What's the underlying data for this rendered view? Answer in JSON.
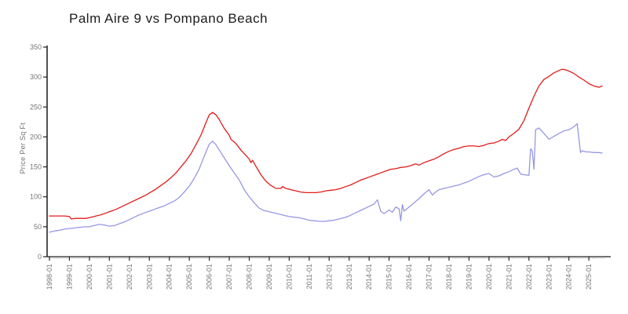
{
  "header": {
    "title": "Palm Aire 9 vs Pompano Beach"
  },
  "chart_data": {
    "type": "line",
    "title": "Palm Aire 9 vs Pompano Beach",
    "xlabel": "",
    "ylabel": "Price Per Sq Ft",
    "ylim": [
      0,
      350
    ],
    "y_tick_step": 50,
    "y_ticks": [
      0,
      50,
      100,
      150,
      200,
      250,
      300,
      350
    ],
    "x_tick_labels": [
      "1998-01",
      "1999-01",
      "2000-01",
      "2001-01",
      "2002-01",
      "2003-01",
      "2004-01",
      "2005-01",
      "2006-01",
      "2007-01",
      "2008-01",
      "2009-01",
      "2010-01",
      "2011-01",
      "2012-01",
      "2013-01",
      "2014-01",
      "2015-01",
      "2016-01",
      "2017-01",
      "2018-01",
      "2019-01",
      "2020-01",
      "2021-01",
      "2022-01",
      "2023-01",
      "2024-01",
      "2025-01"
    ],
    "x_range": [
      "1998-01",
      "2025-10"
    ],
    "grid": false,
    "legend_position": "none",
    "axis_color": "#1a1a1a",
    "tick_label_color": "#767676",
    "series": [
      {
        "name": "red-series",
        "color": "#e01c1c",
        "points": [
          [
            "1998-01",
            68
          ],
          [
            "1998-04",
            68
          ],
          [
            "1998-07",
            68
          ],
          [
            "1998-10",
            68
          ],
          [
            "1999-01",
            67
          ],
          [
            "1999-02",
            63
          ],
          [
            "1999-05",
            64
          ],
          [
            "1999-08",
            64
          ],
          [
            "1999-11",
            64
          ],
          [
            "2000-02",
            66
          ],
          [
            "2000-05",
            68
          ],
          [
            "2000-08",
            70
          ],
          [
            "2000-11",
            73
          ],
          [
            "2001-02",
            76
          ],
          [
            "2001-05",
            79
          ],
          [
            "2001-08",
            83
          ],
          [
            "2001-11",
            87
          ],
          [
            "2002-02",
            91
          ],
          [
            "2002-05",
            95
          ],
          [
            "2002-08",
            99
          ],
          [
            "2002-11",
            103
          ],
          [
            "2003-02",
            108
          ],
          [
            "2003-05",
            113
          ],
          [
            "2003-08",
            119
          ],
          [
            "2003-11",
            125
          ],
          [
            "2004-02",
            132
          ],
          [
            "2004-05",
            140
          ],
          [
            "2004-08",
            150
          ],
          [
            "2004-11",
            160
          ],
          [
            "2005-02",
            172
          ],
          [
            "2005-05",
            187
          ],
          [
            "2005-08",
            203
          ],
          [
            "2005-11",
            224
          ],
          [
            "2006-01",
            237
          ],
          [
            "2006-03",
            241
          ],
          [
            "2006-05",
            237
          ],
          [
            "2006-07",
            229
          ],
          [
            "2006-10",
            214
          ],
          [
            "2007-01",
            203
          ],
          [
            "2007-02",
            196
          ],
          [
            "2007-05",
            189
          ],
          [
            "2007-08",
            178
          ],
          [
            "2007-11",
            169
          ],
          [
            "2008-01",
            163
          ],
          [
            "2008-02",
            157
          ],
          [
            "2008-03",
            161
          ],
          [
            "2008-05",
            151
          ],
          [
            "2008-08",
            137
          ],
          [
            "2008-11",
            126
          ],
          [
            "2009-02",
            119
          ],
          [
            "2009-05",
            114
          ],
          [
            "2009-08",
            114
          ],
          [
            "2009-09",
            117
          ],
          [
            "2009-11",
            114
          ],
          [
            "2010-02",
            112
          ],
          [
            "2010-05",
            110
          ],
          [
            "2010-08",
            108
          ],
          [
            "2010-11",
            107
          ],
          [
            "2011-02",
            107
          ],
          [
            "2011-05",
            107
          ],
          [
            "2011-08",
            108
          ],
          [
            "2011-11",
            110
          ],
          [
            "2012-02",
            111
          ],
          [
            "2012-05",
            112
          ],
          [
            "2012-08",
            114
          ],
          [
            "2012-11",
            117
          ],
          [
            "2013-02",
            120
          ],
          [
            "2013-05",
            124
          ],
          [
            "2013-08",
            128
          ],
          [
            "2013-11",
            131
          ],
          [
            "2014-02",
            134
          ],
          [
            "2014-05",
            137
          ],
          [
            "2014-08",
            140
          ],
          [
            "2014-11",
            143
          ],
          [
            "2015-02",
            146
          ],
          [
            "2015-05",
            147
          ],
          [
            "2015-08",
            149
          ],
          [
            "2015-11",
            150
          ],
          [
            "2016-02",
            152
          ],
          [
            "2016-05",
            155
          ],
          [
            "2016-07",
            153
          ],
          [
            "2016-10",
            157
          ],
          [
            "2017-01",
            160
          ],
          [
            "2017-04",
            163
          ],
          [
            "2017-07",
            167
          ],
          [
            "2017-10",
            172
          ],
          [
            "2018-01",
            176
          ],
          [
            "2018-04",
            179
          ],
          [
            "2018-07",
            181
          ],
          [
            "2018-10",
            184
          ],
          [
            "2019-01",
            185
          ],
          [
            "2019-04",
            185
          ],
          [
            "2019-07",
            184
          ],
          [
            "2019-10",
            186
          ],
          [
            "2020-01",
            189
          ],
          [
            "2020-04",
            190
          ],
          [
            "2020-07",
            193
          ],
          [
            "2020-09",
            196
          ],
          [
            "2020-11",
            194
          ],
          [
            "2021-01",
            200
          ],
          [
            "2021-04",
            206
          ],
          [
            "2021-07",
            213
          ],
          [
            "2021-10",
            227
          ],
          [
            "2022-01",
            248
          ],
          [
            "2022-04",
            268
          ],
          [
            "2022-07",
            285
          ],
          [
            "2022-10",
            296
          ],
          [
            "2023-01",
            301
          ],
          [
            "2023-04",
            307
          ],
          [
            "2023-07",
            311
          ],
          [
            "2023-09",
            313
          ],
          [
            "2023-11",
            312
          ],
          [
            "2024-01",
            310
          ],
          [
            "2024-04",
            306
          ],
          [
            "2024-07",
            300
          ],
          [
            "2024-10",
            295
          ],
          [
            "2025-01",
            289
          ],
          [
            "2025-04",
            285
          ],
          [
            "2025-07",
            283
          ],
          [
            "2025-09",
            285
          ]
        ]
      },
      {
        "name": "blue-series",
        "color": "#9697e2",
        "points": [
          [
            "1998-01",
            41
          ],
          [
            "1998-04",
            43
          ],
          [
            "1998-07",
            44
          ],
          [
            "1998-10",
            46
          ],
          [
            "1999-01",
            47
          ],
          [
            "1999-04",
            48
          ],
          [
            "1999-07",
            49
          ],
          [
            "1999-10",
            50
          ],
          [
            "2000-01",
            50
          ],
          [
            "2000-04",
            52
          ],
          [
            "2000-07",
            54
          ],
          [
            "2000-10",
            53
          ],
          [
            "2001-01",
            51
          ],
          [
            "2001-04",
            52
          ],
          [
            "2001-07",
            55
          ],
          [
            "2001-10",
            58
          ],
          [
            "2002-01",
            62
          ],
          [
            "2002-04",
            66
          ],
          [
            "2002-07",
            70
          ],
          [
            "2002-10",
            73
          ],
          [
            "2003-01",
            76
          ],
          [
            "2003-04",
            79
          ],
          [
            "2003-07",
            82
          ],
          [
            "2003-10",
            85
          ],
          [
            "2004-01",
            89
          ],
          [
            "2004-04",
            93
          ],
          [
            "2004-07",
            99
          ],
          [
            "2004-10",
            108
          ],
          [
            "2005-01",
            118
          ],
          [
            "2005-04",
            131
          ],
          [
            "2005-07",
            147
          ],
          [
            "2005-10",
            168
          ],
          [
            "2006-01",
            188
          ],
          [
            "2006-03",
            193
          ],
          [
            "2006-05",
            187
          ],
          [
            "2006-07",
            178
          ],
          [
            "2006-10",
            165
          ],
          [
            "2007-01",
            152
          ],
          [
            "2007-04",
            140
          ],
          [
            "2007-07",
            128
          ],
          [
            "2007-10",
            112
          ],
          [
            "2008-01",
            100
          ],
          [
            "2008-04",
            90
          ],
          [
            "2008-07",
            81
          ],
          [
            "2008-10",
            77
          ],
          [
            "2009-01",
            75
          ],
          [
            "2009-04",
            73
          ],
          [
            "2009-07",
            71
          ],
          [
            "2009-10",
            69
          ],
          [
            "2010-01",
            67
          ],
          [
            "2010-04",
            66
          ],
          [
            "2010-07",
            65
          ],
          [
            "2010-10",
            63
          ],
          [
            "2011-01",
            61
          ],
          [
            "2011-04",
            60
          ],
          [
            "2011-07",
            59
          ],
          [
            "2011-10",
            59
          ],
          [
            "2012-01",
            60
          ],
          [
            "2012-04",
            61
          ],
          [
            "2012-07",
            63
          ],
          [
            "2012-10",
            65
          ],
          [
            "2013-01",
            68
          ],
          [
            "2013-04",
            72
          ],
          [
            "2013-07",
            76
          ],
          [
            "2013-10",
            80
          ],
          [
            "2014-01",
            84
          ],
          [
            "2014-04",
            88
          ],
          [
            "2014-06",
            95
          ],
          [
            "2014-08",
            76
          ],
          [
            "2014-10",
            72
          ],
          [
            "2015-01",
            78
          ],
          [
            "2015-03",
            74
          ],
          [
            "2015-05",
            83
          ],
          [
            "2015-07",
            80
          ],
          [
            "2015-08",
            60
          ],
          [
            "2015-09",
            87
          ],
          [
            "2015-10",
            76
          ],
          [
            "2016-01",
            83
          ],
          [
            "2016-04",
            90
          ],
          [
            "2016-07",
            97
          ],
          [
            "2016-10",
            105
          ],
          [
            "2017-01",
            112
          ],
          [
            "2017-03",
            103
          ],
          [
            "2017-05",
            108
          ],
          [
            "2017-07",
            112
          ],
          [
            "2017-10",
            114
          ],
          [
            "2018-01",
            116
          ],
          [
            "2018-04",
            118
          ],
          [
            "2018-07",
            120
          ],
          [
            "2018-10",
            123
          ],
          [
            "2019-01",
            126
          ],
          [
            "2019-04",
            130
          ],
          [
            "2019-07",
            134
          ],
          [
            "2019-10",
            137
          ],
          [
            "2020-01",
            139
          ],
          [
            "2020-04",
            133
          ],
          [
            "2020-07",
            135
          ],
          [
            "2020-10",
            139
          ],
          [
            "2021-01",
            142
          ],
          [
            "2021-04",
            146
          ],
          [
            "2021-06",
            148
          ],
          [
            "2021-08",
            138
          ],
          [
            "2021-10",
            137
          ],
          [
            "2022-01",
            136
          ],
          [
            "2022-02",
            180
          ],
          [
            "2022-03",
            177
          ],
          [
            "2022-04",
            146
          ],
          [
            "2022-05",
            212
          ],
          [
            "2022-07",
            215
          ],
          [
            "2022-10",
            206
          ],
          [
            "2023-01",
            196
          ],
          [
            "2023-04",
            201
          ],
          [
            "2023-07",
            206
          ],
          [
            "2023-10",
            210
          ],
          [
            "2024-01",
            212
          ],
          [
            "2024-04",
            217
          ],
          [
            "2024-06",
            222
          ],
          [
            "2024-08",
            174
          ],
          [
            "2024-09",
            177
          ],
          [
            "2024-11",
            175
          ],
          [
            "2025-01",
            175
          ],
          [
            "2025-04",
            174
          ],
          [
            "2025-07",
            174
          ],
          [
            "2025-09",
            173
          ]
        ]
      }
    ]
  }
}
